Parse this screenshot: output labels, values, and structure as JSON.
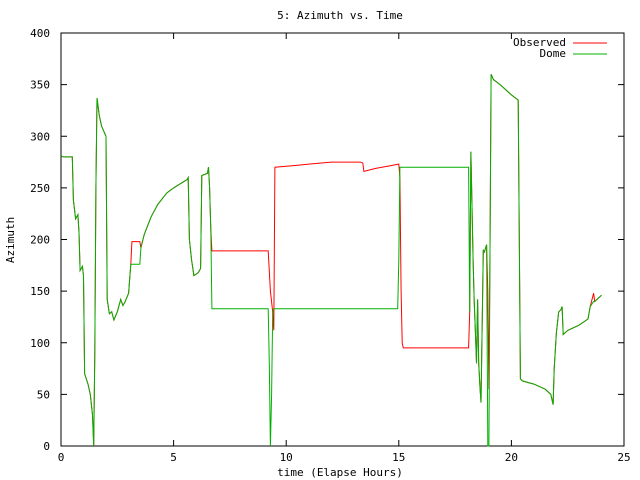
{
  "chart_data": {
    "type": "line",
    "title": "5: Azimuth vs. Time",
    "xlabel": "time (Elapse Hours)",
    "ylabel": "Azimuth",
    "xlim": [
      0,
      25
    ],
    "ylim": [
      0,
      400
    ],
    "xticks": [
      "0",
      "5",
      "10",
      "15",
      "20",
      "25"
    ],
    "yticks": [
      "0",
      "50",
      "100",
      "150",
      "200",
      "250",
      "300",
      "350",
      "400"
    ],
    "xtick_values": [
      0,
      5,
      10,
      15,
      20,
      25
    ],
    "ytick_values": [
      0,
      50,
      100,
      150,
      200,
      250,
      300,
      350,
      400
    ],
    "legend_position": "top-right",
    "grid": false,
    "series": [
      {
        "name": "Observed",
        "color": "#ff0000",
        "points": [
          [
            0,
            281
          ],
          [
            0.1,
            280
          ],
          [
            0.5,
            280
          ],
          [
            0.55,
            238
          ],
          [
            0.65,
            220
          ],
          [
            0.75,
            224
          ],
          [
            0.8,
            207
          ],
          [
            0.85,
            170
          ],
          [
            0.95,
            174
          ],
          [
            1.0,
            165
          ],
          [
            1.05,
            70
          ],
          [
            1.2,
            60
          ],
          [
            1.3,
            50
          ],
          [
            1.4,
            30
          ],
          [
            1.45,
            0
          ],
          [
            1.5,
            90
          ],
          [
            1.55,
            250
          ],
          [
            1.6,
            337
          ],
          [
            1.7,
            320
          ],
          [
            1.8,
            310
          ],
          [
            2.0,
            300
          ],
          [
            2.05,
            142
          ],
          [
            2.15,
            128
          ],
          [
            2.25,
            130
          ],
          [
            2.35,
            122
          ],
          [
            2.5,
            130
          ],
          [
            2.6,
            138
          ],
          [
            2.65,
            142
          ],
          [
            2.75,
            136
          ],
          [
            2.85,
            140
          ],
          [
            3.0,
            148
          ],
          [
            3.05,
            162
          ],
          [
            3.1,
            176
          ],
          [
            3.15,
            198
          ],
          [
            3.5,
            198
          ],
          [
            3.55,
            192
          ],
          [
            3.7,
            205
          ],
          [
            4.0,
            222
          ],
          [
            4.3,
            234
          ],
          [
            4.7,
            245
          ],
          [
            5.0,
            250
          ],
          [
            5.3,
            254
          ],
          [
            5.6,
            258
          ],
          [
            5.65,
            260
          ],
          [
            5.7,
            200
          ],
          [
            5.8,
            180
          ],
          [
            5.9,
            165
          ],
          [
            6.1,
            168
          ],
          [
            6.2,
            172
          ],
          [
            6.25,
            262
          ],
          [
            6.5,
            264
          ],
          [
            6.55,
            270
          ],
          [
            6.6,
            250
          ],
          [
            6.65,
            210
          ],
          [
            6.7,
            189
          ],
          [
            9.2,
            189
          ],
          [
            9.3,
            150
          ],
          [
            9.4,
            130
          ],
          [
            9.45,
            112
          ],
          [
            9.5,
            270
          ],
          [
            10.0,
            271
          ],
          [
            10.5,
            272
          ],
          [
            11.0,
            273
          ],
          [
            11.5,
            274
          ],
          [
            12.0,
            275
          ],
          [
            12.5,
            275
          ],
          [
            13.0,
            275
          ],
          [
            13.3,
            275
          ],
          [
            13.4,
            274
          ],
          [
            13.45,
            266
          ],
          [
            14.0,
            269
          ],
          [
            14.5,
            271
          ],
          [
            15.0,
            273
          ],
          [
            15.05,
            260
          ],
          [
            15.08,
            195
          ],
          [
            15.1,
            150
          ],
          [
            15.15,
            100
          ],
          [
            15.2,
            95
          ],
          [
            18.1,
            95
          ],
          [
            18.15,
            130
          ],
          [
            18.2,
            285
          ],
          [
            18.3,
            180
          ],
          [
            18.35,
            140
          ],
          [
            18.4,
            110
          ],
          [
            18.45,
            80
          ],
          [
            18.5,
            142
          ],
          [
            18.55,
            80
          ],
          [
            18.6,
            58
          ],
          [
            18.65,
            42
          ],
          [
            18.75,
            190
          ],
          [
            18.8,
            188
          ],
          [
            18.9,
            195
          ],
          [
            18.95,
            150
          ],
          [
            19.0,
            55
          ],
          [
            19.05,
            190
          ],
          [
            19.1,
            360
          ],
          [
            19.2,
            355
          ],
          [
            19.5,
            350
          ],
          [
            20.0,
            340
          ],
          [
            20.3,
            335
          ],
          [
            20.35,
            200
          ],
          [
            20.4,
            65
          ],
          [
            20.5,
            63
          ],
          [
            21.0,
            60
          ],
          [
            21.5,
            55
          ],
          [
            21.75,
            50
          ],
          [
            21.85,
            40
          ],
          [
            21.9,
            75
          ],
          [
            22.0,
            110
          ],
          [
            22.1,
            130
          ],
          [
            22.2,
            132
          ],
          [
            22.25,
            135
          ],
          [
            22.3,
            108
          ],
          [
            22.5,
            112
          ],
          [
            23.0,
            117
          ],
          [
            23.4,
            123
          ],
          [
            23.5,
            135
          ],
          [
            23.65,
            148
          ],
          [
            23.7,
            140
          ],
          [
            23.8,
            142
          ],
          [
            24.0,
            146
          ]
        ]
      },
      {
        "name": "Dome",
        "color": "#00b000",
        "points": [
          [
            0,
            281
          ],
          [
            0.1,
            280
          ],
          [
            0.5,
            280
          ],
          [
            0.55,
            238
          ],
          [
            0.65,
            220
          ],
          [
            0.75,
            224
          ],
          [
            0.8,
            207
          ],
          [
            0.85,
            170
          ],
          [
            0.95,
            174
          ],
          [
            1.0,
            165
          ],
          [
            1.05,
            70
          ],
          [
            1.2,
            60
          ],
          [
            1.3,
            50
          ],
          [
            1.4,
            30
          ],
          [
            1.45,
            0
          ],
          [
            1.5,
            90
          ],
          [
            1.55,
            250
          ],
          [
            1.6,
            337
          ],
          [
            1.7,
            320
          ],
          [
            1.8,
            310
          ],
          [
            2.0,
            300
          ],
          [
            2.05,
            142
          ],
          [
            2.15,
            128
          ],
          [
            2.25,
            130
          ],
          [
            2.35,
            122
          ],
          [
            2.5,
            130
          ],
          [
            2.6,
            138
          ],
          [
            2.65,
            142
          ],
          [
            2.75,
            136
          ],
          [
            2.85,
            140
          ],
          [
            3.0,
            148
          ],
          [
            3.05,
            162
          ],
          [
            3.1,
            176
          ],
          [
            3.15,
            176
          ],
          [
            3.5,
            176
          ],
          [
            3.55,
            192
          ],
          [
            3.7,
            205
          ],
          [
            4.0,
            222
          ],
          [
            4.3,
            234
          ],
          [
            4.7,
            245
          ],
          [
            5.0,
            250
          ],
          [
            5.3,
            254
          ],
          [
            5.6,
            258
          ],
          [
            5.65,
            260
          ],
          [
            5.7,
            200
          ],
          [
            5.8,
            180
          ],
          [
            5.9,
            165
          ],
          [
            6.1,
            168
          ],
          [
            6.2,
            172
          ],
          [
            6.25,
            262
          ],
          [
            6.5,
            264
          ],
          [
            6.55,
            270
          ],
          [
            6.6,
            250
          ],
          [
            6.65,
            210
          ],
          [
            6.7,
            133
          ],
          [
            9.2,
            133
          ],
          [
            9.25,
            80
          ],
          [
            9.3,
            0
          ],
          [
            9.35,
            50
          ],
          [
            9.4,
            130
          ],
          [
            9.45,
            133
          ],
          [
            14.95,
            133
          ],
          [
            15.0,
            180
          ],
          [
            15.05,
            270
          ],
          [
            18.1,
            270
          ],
          [
            18.15,
            130
          ],
          [
            18.2,
            285
          ],
          [
            18.3,
            180
          ],
          [
            18.35,
            140
          ],
          [
            18.4,
            110
          ],
          [
            18.45,
            80
          ],
          [
            18.5,
            142
          ],
          [
            18.55,
            80
          ],
          [
            18.6,
            58
          ],
          [
            18.65,
            42
          ],
          [
            18.75,
            190
          ],
          [
            18.8,
            188
          ],
          [
            18.9,
            195
          ],
          [
            18.95,
            0
          ],
          [
            19.0,
            0
          ],
          [
            19.05,
            190
          ],
          [
            19.1,
            360
          ],
          [
            19.2,
            355
          ],
          [
            19.5,
            350
          ],
          [
            20.0,
            340
          ],
          [
            20.3,
            335
          ],
          [
            20.35,
            200
          ],
          [
            20.4,
            65
          ],
          [
            20.5,
            63
          ],
          [
            21.0,
            60
          ],
          [
            21.5,
            55
          ],
          [
            21.75,
            50
          ],
          [
            21.85,
            40
          ],
          [
            21.9,
            75
          ],
          [
            22.0,
            110
          ],
          [
            22.1,
            130
          ],
          [
            22.2,
            132
          ],
          [
            22.25,
            135
          ],
          [
            22.3,
            108
          ],
          [
            22.5,
            112
          ],
          [
            23.0,
            117
          ],
          [
            23.4,
            123
          ],
          [
            23.5,
            135
          ],
          [
            23.65,
            140
          ],
          [
            23.7,
            140
          ],
          [
            23.8,
            142
          ],
          [
            24.0,
            146
          ]
        ]
      }
    ]
  }
}
